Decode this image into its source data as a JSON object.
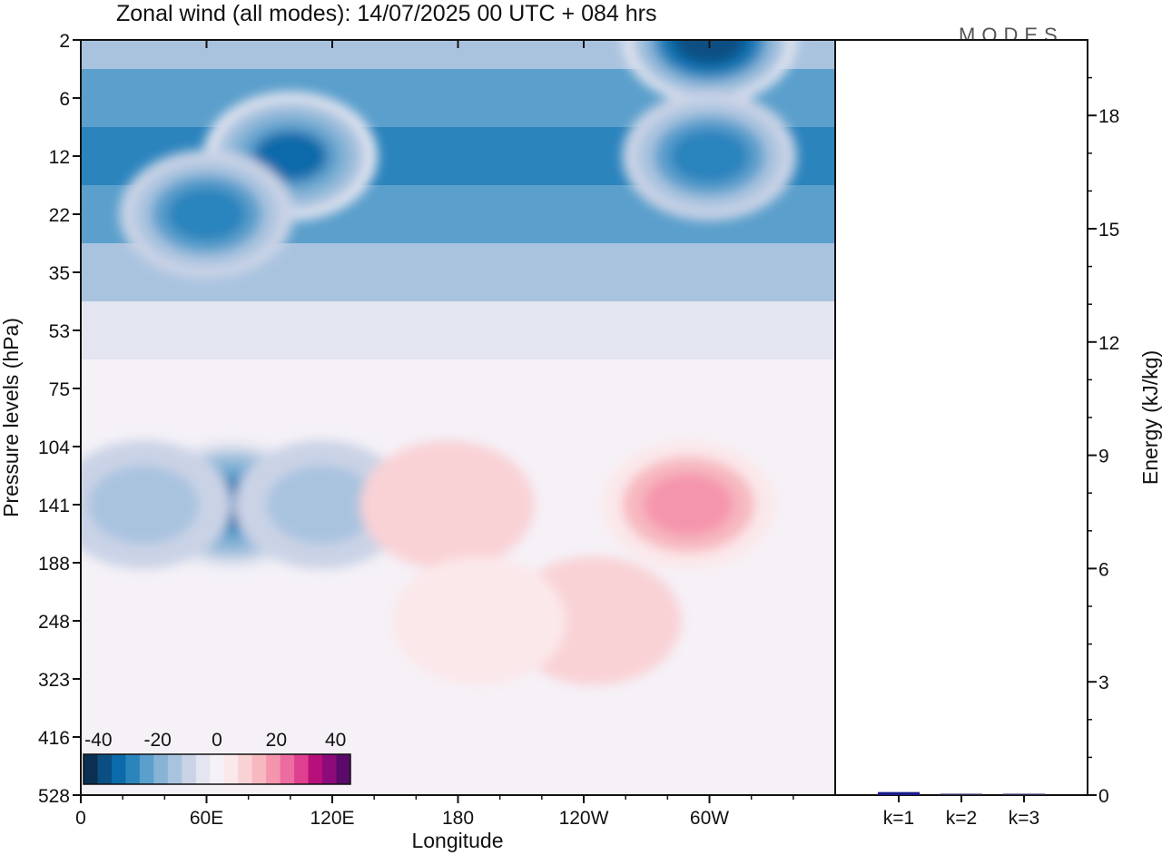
{
  "chart_data": {
    "type": "heatmap",
    "title": "Zonal wind (all modes):  14/07/2025  00 UTC  + 084 hrs",
    "logo": "MODES",
    "main_panel": {
      "xlabel": "Longitude",
      "ylabel": "Pressure levels (hPa)",
      "x_ticks": [
        "0",
        "60E",
        "120E",
        "180",
        "120W",
        "60W"
      ],
      "y_ticks": [
        "2",
        "6",
        "12",
        "22",
        "35",
        "53",
        "75",
        "104",
        "141",
        "188",
        "248",
        "323",
        "416",
        "528"
      ],
      "xlim_deg_east": [
        0,
        360
      ],
      "y_scale": "pressure-level index, top to bottom",
      "colorbar": {
        "tick_labels": [
          "-40",
          "-20",
          "0",
          "20",
          "40"
        ],
        "range": [
          -45,
          45
        ],
        "step": 5,
        "colors": [
          "#0a2f52",
          "#0b4f82",
          "#0b6aaa",
          "#2c84bd",
          "#5b9fcc",
          "#86b3d6",
          "#a9c3df",
          "#cad3e6",
          "#e3e5f0",
          "#f5f1f7",
          "#fbe8ea",
          "#f9d2d6",
          "#f7b8c0",
          "#f595ad",
          "#ec6ba0",
          "#de3f8e",
          "#b8107a",
          "#8c0a7a",
          "#5a0a6a"
        ]
      },
      "features": [
        {
          "level": 2,
          "lon": 300,
          "value": -40
        },
        {
          "level": 12,
          "lon": 100,
          "value": -32
        },
        {
          "level": 12,
          "lon": 300,
          "value": -30
        },
        {
          "level": 22,
          "lon": 60,
          "value": -30
        },
        {
          "level": 141,
          "lon": 72,
          "value": -32
        },
        {
          "level": 141,
          "lon": 30,
          "value": -15
        },
        {
          "level": 141,
          "lon": 115,
          "value": -15
        },
        {
          "level": 141,
          "lon": 175,
          "value": 10
        },
        {
          "level": 141,
          "lon": 290,
          "value": 18
        },
        {
          "level": 248,
          "lon": 245,
          "value": 10
        },
        {
          "level": 248,
          "lon": 190,
          "value": 7
        }
      ]
    },
    "energy_panel": {
      "ylabel": "Energy (kJ/kg)",
      "y_ticks": [
        "0",
        "3",
        "6",
        "9",
        "12",
        "15",
        "18"
      ],
      "ylim": [
        0,
        20
      ],
      "categories": [
        "k=1",
        "k=2",
        "k=3"
      ],
      "values": [
        0.08,
        0.03,
        0.03
      ],
      "bar_colors": [
        "#1a1a8c",
        "#2a2a5a",
        "#2a2a5a"
      ]
    }
  }
}
